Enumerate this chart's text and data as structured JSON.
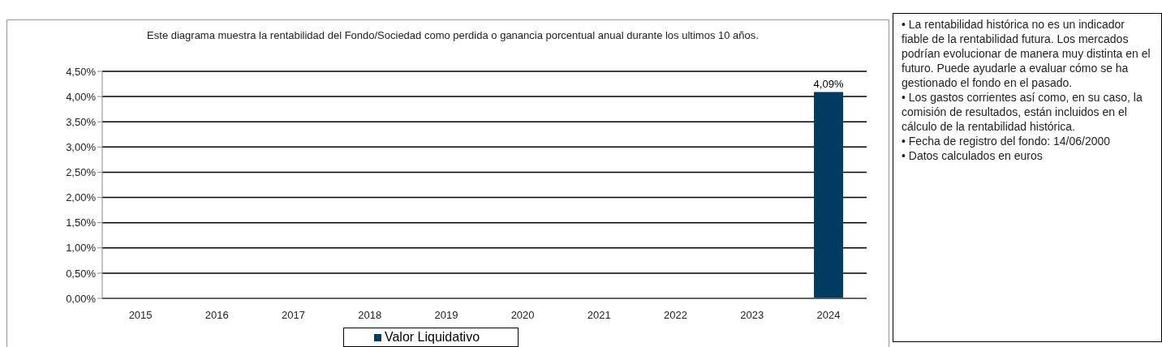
{
  "chart_data": {
    "type": "bar",
    "title": "Este diagrama muestra la rentabilidad del Fondo/Sociedad como perdida o ganancia porcentual anual durante los ultimos 10 años.",
    "categories": [
      "2015",
      "2016",
      "2017",
      "2018",
      "2019",
      "2020",
      "2021",
      "2022",
      "2023",
      "2024"
    ],
    "series": [
      {
        "name": "Valor Liquidativo",
        "color": "#003b62",
        "values": [
          null,
          null,
          null,
          null,
          null,
          null,
          null,
          null,
          null,
          4.09
        ],
        "value_labels": [
          null,
          null,
          null,
          null,
          null,
          null,
          null,
          null,
          null,
          "4,09%"
        ]
      }
    ],
    "ylim": [
      0,
      4.5
    ],
    "yticks": [
      {
        "value": 0,
        "label": "0,00%"
      },
      {
        "value": 0.5,
        "label": "0,50%"
      },
      {
        "value": 1,
        "label": "1,00%"
      },
      {
        "value": 1.5,
        "label": "1,50%"
      },
      {
        "value": 2,
        "label": "2,00%"
      },
      {
        "value": 2.5,
        "label": "2,50%"
      },
      {
        "value": 3,
        "label": "3,00%"
      },
      {
        "value": 3.5,
        "label": "3,50%"
      },
      {
        "value": 4,
        "label": "4,00%"
      },
      {
        "value": 4.5,
        "label": "4,50%"
      }
    ],
    "grid": "y",
    "legend": "bottom",
    "annotations": [
      "• La rentabilidad histórica no es un indicador fiable de la rentabilidad futura. Los mercados podrían evolucionar de manera muy distinta en el futuro. Puede ayudarle a evaluar cómo se ha gestionado el fondo en el pasado.",
      "• Los gastos corrientes así como, en su caso, la comisión de resultados, están incluidos en el cálculo de la rentabilidad histórica.",
      "• Fecha de registro del fondo: 14/06/2000",
      "• Datos calculados en euros"
    ]
  }
}
